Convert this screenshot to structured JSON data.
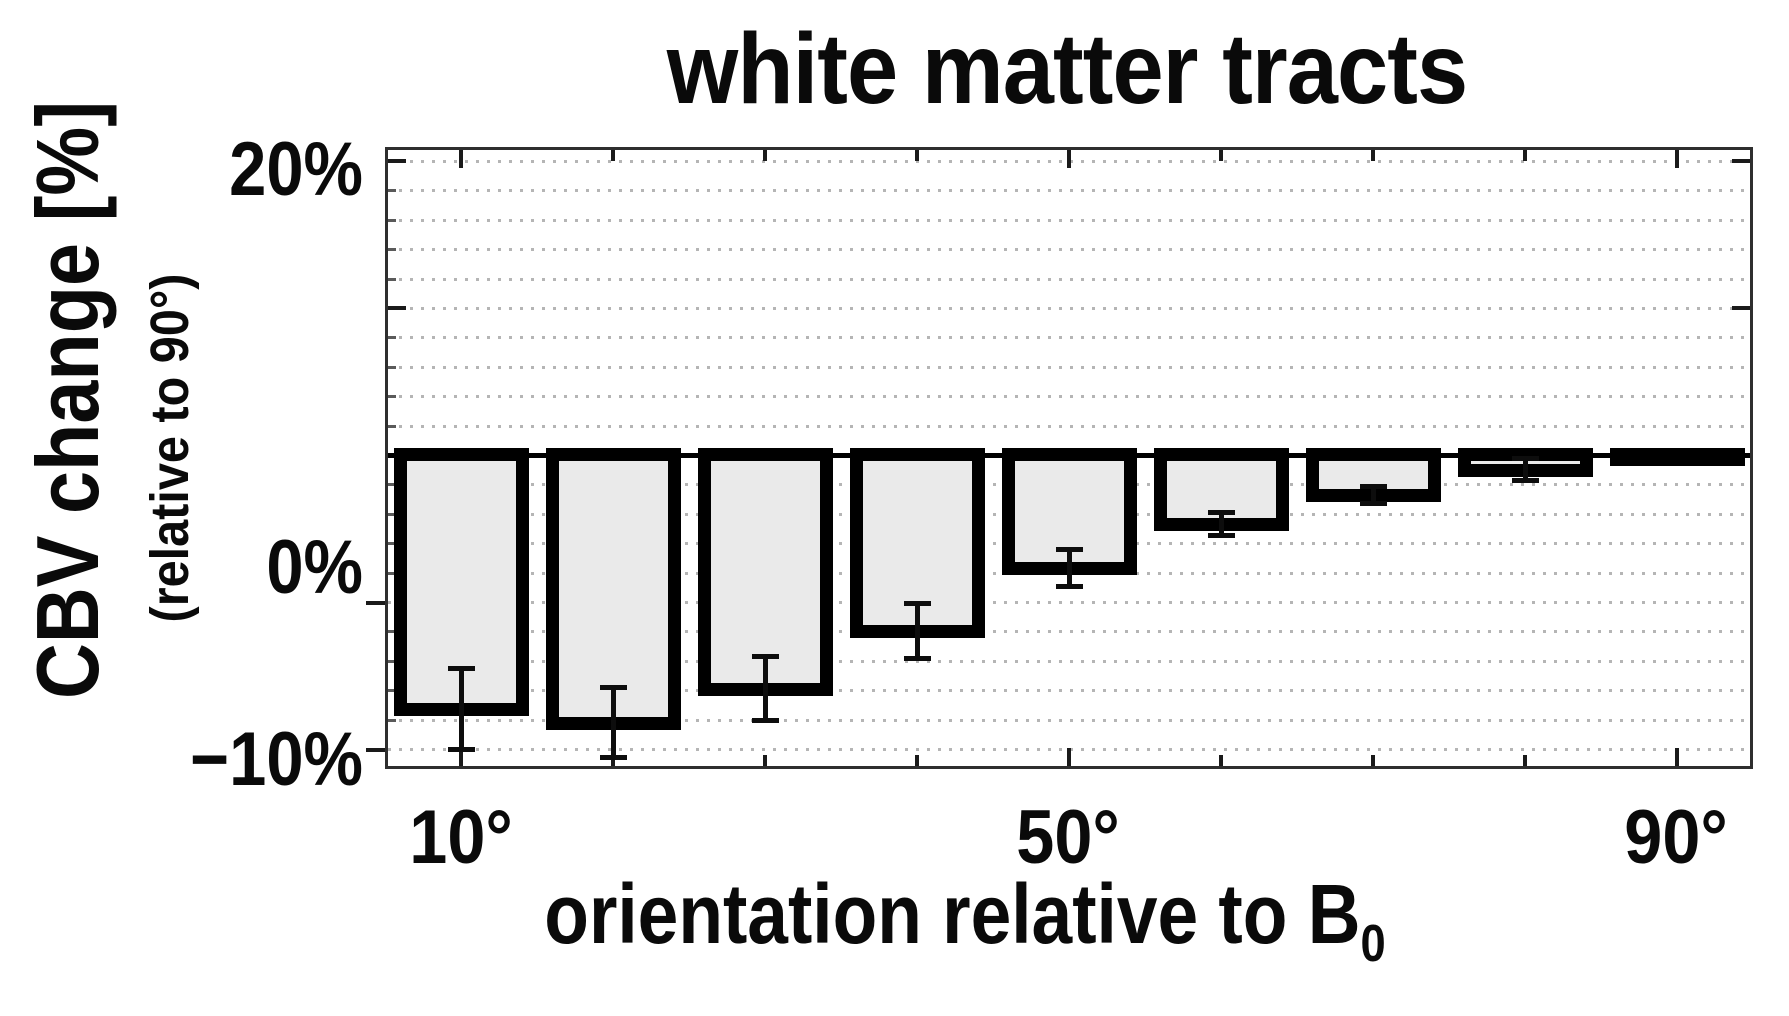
{
  "title": "white matter tracts",
  "y_axis": {
    "label": "CBV change [%]",
    "sublabel": "(relative to 90°)",
    "tick_labels": [
      "20%",
      "0%",
      "−10%"
    ]
  },
  "x_axis": {
    "label_text": "orientation relative to B",
    "label_subscript": "0",
    "tick_labels": [
      "10°",
      "50°",
      "90°"
    ]
  },
  "chart_data": {
    "type": "bar",
    "title": "white matter tracts",
    "xlabel": "orientation relative to B0",
    "ylabel": "CBV change [%] (relative to 90°)",
    "categories_deg": [
      10,
      20,
      30,
      40,
      50,
      60,
      70,
      80,
      90
    ],
    "x_ticks_labeled_deg": [
      10,
      50,
      90
    ],
    "series": [
      {
        "name": "CBV change relative to 90°",
        "values_pct": [
          -17.3,
          -18.2,
          -15.9,
          -12.0,
          -7.7,
          -4.7,
          -2.7,
          -1.0,
          -0.3
        ],
        "errors_pct": [
          2.8,
          2.4,
          2.2,
          1.9,
          1.3,
          0.8,
          0.6,
          0.8,
          0.0
        ]
      }
    ],
    "ylim_pct": [
      -21,
      21
    ],
    "y_major_tick_step_pct": 10,
    "y_minor_grid_step_pct": 2,
    "baseline_pct": 0,
    "grid": "horizontal dotted minor gridlines",
    "legend": "none",
    "bar_fill_color": "#eaeaea",
    "bar_border_color": "#000000",
    "gridline_color": "#b5b5b5",
    "background_color": "#ffffff"
  }
}
